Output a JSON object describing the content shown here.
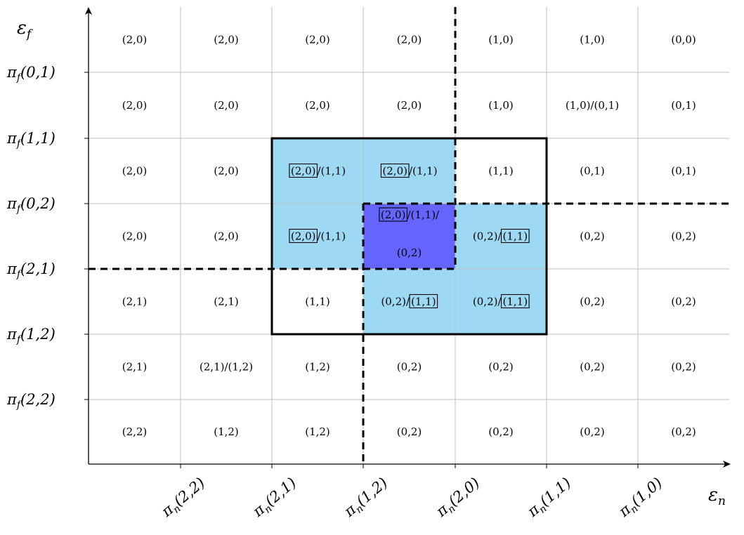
{
  "axes": {
    "x_name": "ε_n",
    "y_name": "ε_f",
    "x_ticks": [
      "π_n(2,2)",
      "π_n(2,1)",
      "π_n(1,2)",
      "π_n(2,0)",
      "π_n(1,1)",
      "π_n(1,0)"
    ],
    "y_ticks": [
      "π_f(0,1)",
      "π_f(1,1)",
      "π_f(0,2)",
      "π_f(2,1)",
      "π_f(1,2)",
      "π_f(2,2)"
    ]
  },
  "colors": {
    "light_blue": "#9dd9f3",
    "dark_blue": "#6464ff",
    "grid": "#bfbfbf",
    "ink": "#000000"
  },
  "grid_rows": [
    [
      [
        {
          "t": "(2,0)"
        }
      ],
      [
        {
          "t": "(2,0)"
        }
      ],
      [
        {
          "t": "(2,0)"
        }
      ],
      [
        {
          "t": "(2,0)"
        }
      ],
      [
        {
          "t": "(1,0)"
        }
      ],
      [
        {
          "t": "(1,0)"
        }
      ],
      [
        {
          "t": "(0,0)"
        }
      ]
    ],
    [
      [
        {
          "t": "(2,0)"
        }
      ],
      [
        {
          "t": "(2,0)"
        }
      ],
      [
        {
          "t": "(2,0)"
        }
      ],
      [
        {
          "t": "(2,0)"
        }
      ],
      [
        {
          "t": "(1,0)"
        }
      ],
      [
        {
          "t": "(1,0)/(0,1)"
        }
      ],
      [
        {
          "t": "(0,1)"
        }
      ]
    ],
    [
      [
        {
          "t": "(2,0)"
        }
      ],
      [
        {
          "t": "(2,0)"
        }
      ],
      [
        {
          "t": "(2,0)",
          "boxed": true
        },
        {
          "t": "/(1,1)"
        }
      ],
      [
        {
          "t": "(2,0)",
          "boxed": true
        },
        {
          "t": "/(1,1)"
        }
      ],
      [
        {
          "t": "(1,1)"
        }
      ],
      [
        {
          "t": "(0,1)"
        }
      ],
      [
        {
          "t": "(0,1)"
        }
      ]
    ],
    [
      [
        {
          "t": "(2,0)"
        }
      ],
      [
        {
          "t": "(2,0)"
        }
      ],
      [
        {
          "t": "(2,0)",
          "boxed": true
        },
        {
          "t": "/(1,1)"
        }
      ],
      [
        {
          "t": "(2,0)",
          "boxed": true
        },
        {
          "t": "/(1,1)/"
        },
        {
          "t": "(0,2)",
          "line": 2
        }
      ],
      [
        {
          "t": "(0,2)/"
        },
        {
          "t": "(1,1)",
          "boxed": true
        }
      ],
      [
        {
          "t": "(0,2)"
        }
      ],
      [
        {
          "t": "(0,2)"
        }
      ]
    ],
    [
      [
        {
          "t": "(2,1)"
        }
      ],
      [
        {
          "t": "(2,1)"
        }
      ],
      [
        {
          "t": "(1,1)"
        }
      ],
      [
        {
          "t": "(0,2)/"
        },
        {
          "t": "(1,1)",
          "boxed": true
        }
      ],
      [
        {
          "t": "(0,2)/"
        },
        {
          "t": "(1,1)",
          "boxed": true
        }
      ],
      [
        {
          "t": "(0,2)"
        }
      ],
      [
        {
          "t": "(0,2)"
        }
      ]
    ],
    [
      [
        {
          "t": "(2,1)"
        }
      ],
      [
        {
          "t": "(2,1)/(1,2)"
        }
      ],
      [
        {
          "t": "(1,2)"
        }
      ],
      [
        {
          "t": "(0,2)"
        }
      ],
      [
        {
          "t": "(0,2)"
        }
      ],
      [
        {
          "t": "(0,2)"
        }
      ],
      [
        {
          "t": "(0,2)"
        }
      ]
    ],
    [
      [
        {
          "t": "(2,2)"
        }
      ],
      [
        {
          "t": "(1,2)"
        }
      ],
      [
        {
          "t": "(1,2)"
        }
      ],
      [
        {
          "t": "(0,2)"
        }
      ],
      [
        {
          "t": "(0,2)"
        }
      ],
      [
        {
          "t": "(0,2)"
        }
      ],
      [
        {
          "t": "(0,2)"
        }
      ]
    ]
  ]
}
